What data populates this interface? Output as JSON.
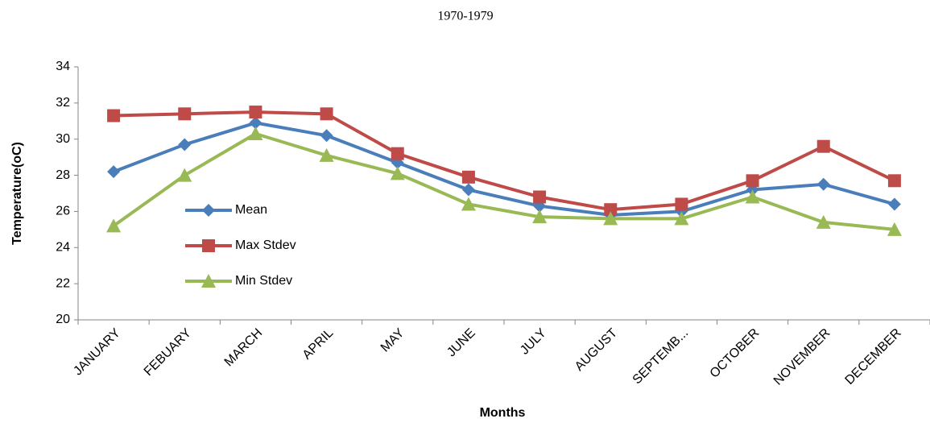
{
  "chart_data": {
    "type": "line",
    "title": "1970-1979",
    "x_label": "Months",
    "y_label": "Temperature(oC)",
    "categories": [
      "JANUARY",
      "FEBUARY",
      "MARCH",
      "APRIL",
      "MAY",
      "JUNE",
      "JULY",
      "AUGUST",
      "SEPTEMB...",
      "OCTOBER",
      "NOVEMBER",
      "DECEMBER"
    ],
    "series": [
      {
        "name": "Mean",
        "color": "#4a7ebb",
        "marker": "diamond",
        "values": [
          28.2,
          29.7,
          30.9,
          30.2,
          28.7,
          27.2,
          26.3,
          25.8,
          26.0,
          27.2,
          27.5,
          26.4
        ]
      },
      {
        "name": "Max Stdev",
        "color": "#be4b48",
        "marker": "square",
        "values": [
          31.3,
          31.4,
          31.5,
          31.4,
          29.2,
          27.9,
          26.8,
          26.1,
          26.4,
          27.7,
          29.6,
          27.7
        ]
      },
      {
        "name": "Min Stdev",
        "color": "#98b954",
        "marker": "triangle",
        "values": [
          25.2,
          28.0,
          30.3,
          29.1,
          28.1,
          26.4,
          25.7,
          25.6,
          25.6,
          26.8,
          25.4,
          25.0
        ]
      }
    ],
    "ylim": [
      20,
      34
    ],
    "yticks": [
      20,
      22,
      24,
      26,
      28,
      30,
      32,
      34
    ],
    "grid": false,
    "legend": "center-left"
  }
}
